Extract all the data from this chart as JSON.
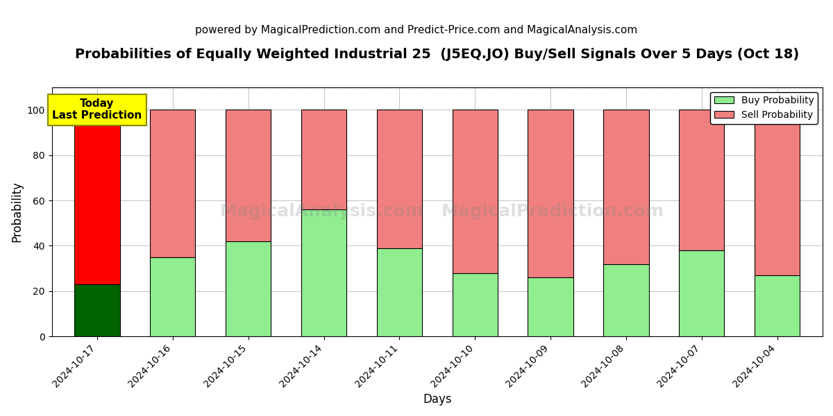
{
  "title": "Probabilities of Equally Weighted Industrial 25  (J5EQ.JO) Buy/Sell Signals Over 5 Days (Oct 18)",
  "subtitle": "powered by MagicalPrediction.com and Predict-Price.com and MagicalAnalysis.com",
  "xlabel": "Days",
  "ylabel": "Probability",
  "dates": [
    "2024-10-17",
    "2024-10-16",
    "2024-10-15",
    "2024-10-14",
    "2024-10-11",
    "2024-10-10",
    "2024-10-09",
    "2024-10-08",
    "2024-10-07",
    "2024-10-04"
  ],
  "buy_values": [
    23,
    35,
    42,
    56,
    39,
    28,
    26,
    32,
    38,
    27
  ],
  "sell_values": [
    77,
    65,
    58,
    44,
    61,
    72,
    74,
    68,
    62,
    73
  ],
  "today_buy_color": "#006400",
  "today_sell_color": "#FF0000",
  "buy_color": "#90EE90",
  "sell_color": "#F08080",
  "today_annotation_bg": "#FFFF00",
  "today_annotation_text": "Today\nLast Prediction",
  "ylim": [
    0,
    110
  ],
  "yticks": [
    0,
    20,
    40,
    60,
    80,
    100
  ],
  "dashed_line_y": 110,
  "watermark_texts": [
    "MagicalAnalysis.com",
    "MagicalPrediction.com"
  ],
  "background_color": "#ffffff",
  "grid_color": "#aaaaaa",
  "bar_edge_color": "#000000",
  "title_fontsize": 14,
  "subtitle_fontsize": 11,
  "axis_label_fontsize": 12,
  "tick_label_fontsize": 10
}
